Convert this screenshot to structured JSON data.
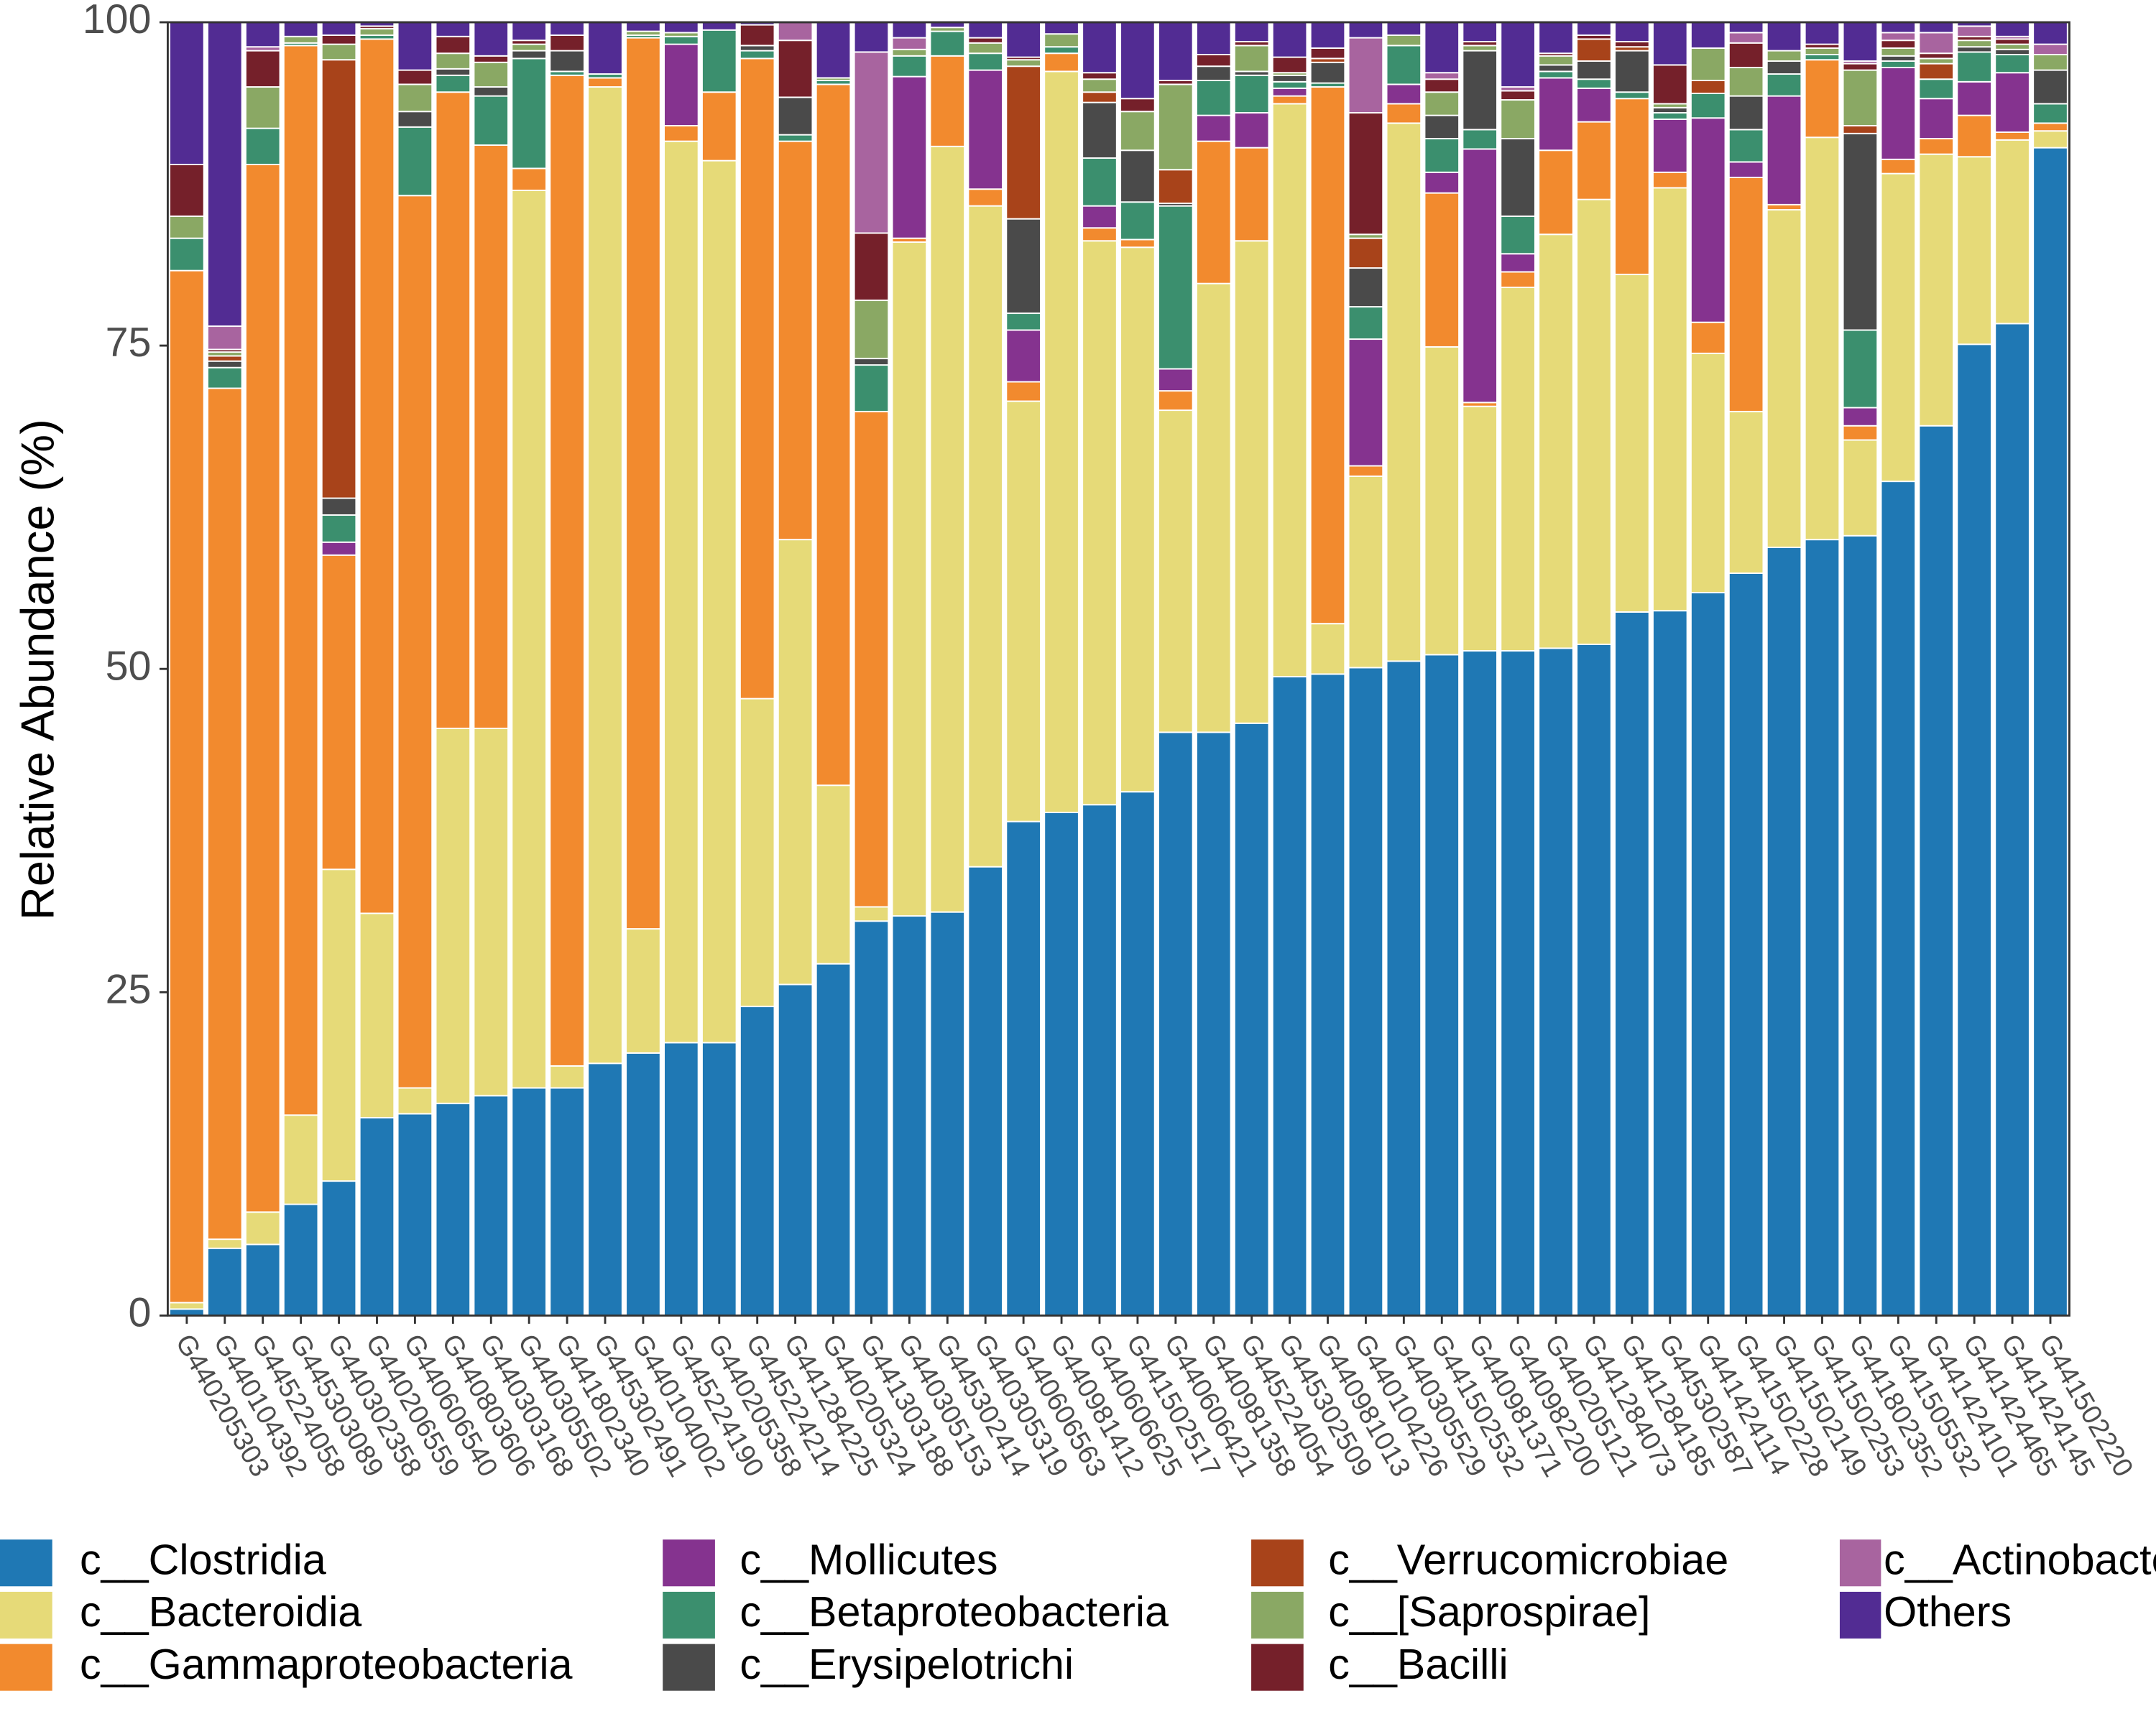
{
  "chart_data": {
    "type": "stacked_bar",
    "y_label": "Relative Abundance (%)",
    "categories": [
      "G440205303",
      "G440104392",
      "G445224058",
      "G445303089",
      "G440302358",
      "G440206559",
      "G440606540",
      "G440803606",
      "G440303168",
      "G440305502",
      "G441802340",
      "G445302491",
      "G440104002",
      "G445224190",
      "G440205358",
      "G445224214",
      "G441284225",
      "G440205324",
      "G441303188",
      "G440305153",
      "G445302414",
      "G440305319",
      "G440606563",
      "G440981412",
      "G440606625",
      "G441502517",
      "G440606421",
      "G440981358",
      "G445224054",
      "G445302509",
      "G440981013",
      "G440104226",
      "G440305529",
      "G441502532",
      "G440981371",
      "G440982200",
      "G440205121",
      "G441284073",
      "G441284185",
      "G445302587",
      "G441424114",
      "G441502228",
      "G441502149",
      "G441502253",
      "G441802352",
      "G441505532",
      "G441424101",
      "G441424465",
      "G441424145",
      "G441502220"
    ],
    "series": [
      {
        "name": "c__Clostridia",
        "color": "#1f78b4",
        "values": [
          0.5,
          5.2,
          5.5,
          8.6,
          10.4,
          15.3,
          15.6,
          16.4,
          17,
          17.6,
          17.6,
          19.5,
          20.3,
          21.1,
          21.1,
          23.9,
          25.6,
          27.2,
          30.5,
          30.9,
          31.2,
          34.7,
          38.2,
          38.9,
          39.5,
          40.5,
          45.1,
          45.1,
          45.8,
          49.4,
          49.6,
          50.1,
          50.6,
          51.1,
          51.4,
          51.4,
          51.6,
          51.9,
          54.4,
          54.5,
          55.9,
          57.4,
          59.4,
          60,
          60.3,
          64.5,
          68.8,
          75.1,
          76.7,
          90.3
        ]
      },
      {
        "name": "c__Bacteroidia",
        "color": "#e6da78",
        "values": [
          0.5,
          0.7,
          2.5,
          6.9,
          24.1,
          15.8,
          2,
          29,
          28.4,
          69.4,
          1.7,
          75.5,
          9.6,
          69.7,
          68.2,
          23.8,
          34.4,
          13.8,
          1.1,
          52.1,
          59.2,
          51.1,
          32.5,
          57.3,
          43.6,
          42.1,
          24.9,
          34.7,
          37.3,
          44.3,
          3.9,
          14.8,
          41.6,
          23.8,
          18.9,
          28.1,
          32,
          34.4,
          26.1,
          32.7,
          18.5,
          12.5,
          26.1,
          31.1,
          7.4,
          23.8,
          21,
          14.5,
          14.2,
          1.3
        ]
      },
      {
        "name": "c__Gammaproteobacteria",
        "color": "#f28a2e",
        "values": [
          79.8,
          65.8,
          81,
          82.7,
          24.3,
          67.6,
          69,
          49.2,
          45.1,
          1.7,
          76.6,
          0.7,
          68.9,
          1.2,
          5.3,
          49.5,
          30.8,
          54.2,
          38.3,
          0.3,
          7,
          1.3,
          1.5,
          1.4,
          1,
          0.6,
          1.5,
          11,
          7.2,
          0.6,
          41.5,
          0.8,
          1.5,
          11.9,
          0.3,
          1.2,
          6.5,
          6,
          13.6,
          1.2,
          2.4,
          18.1,
          0.4,
          6,
          1.1,
          1.1,
          1.2,
          3.2,
          0.6,
          0.6
        ]
      },
      {
        "name": "c__Mollicutes",
        "color": "#85338f",
        "values": [
          0,
          0,
          0,
          0,
          1,
          0,
          0,
          0,
          0,
          0,
          0,
          0,
          0,
          6.3,
          0,
          0,
          0,
          0,
          0,
          12.5,
          0,
          9.2,
          4,
          0,
          1.7,
          0,
          1.7,
          2,
          2.7,
          0.6,
          0,
          9.8,
          1.5,
          1.6,
          19.6,
          1.4,
          5.6,
          2.6,
          0,
          4.1,
          15.8,
          1.2,
          8.4,
          0,
          1.4,
          7.1,
          3.1,
          2.6,
          4.6,
          0
        ]
      },
      {
        "name": "c__Betaproteobacteria",
        "color": "#3b8f6e",
        "values": [
          2.5,
          1.6,
          2.8,
          0.2,
          2.1,
          0.3,
          5.3,
          1.3,
          3.8,
          8.5,
          0.3,
          0.3,
          0.2,
          0.6,
          4.8,
          0.6,
          0.5,
          0.3,
          3.6,
          1.6,
          1.9,
          1.3,
          1.3,
          0.5,
          3.7,
          2.9,
          12.6,
          2.7,
          2.9,
          0.5,
          0.3,
          2.5,
          3,
          2.6,
          1.5,
          2.9,
          0.5,
          0.7,
          0.5,
          0.5,
          1.9,
          2.5,
          1.7,
          0.4,
          6,
          0.5,
          1.5,
          2.3,
          1.4,
          1.5
        ]
      },
      {
        "name": "c__Erysipelotrichi",
        "color": "#4a4a4a",
        "values": [
          0,
          0.5,
          0,
          0,
          1.3,
          0,
          1.2,
          0.5,
          0.7,
          0.6,
          1.6,
          0,
          0,
          0,
          0,
          0.4,
          2.9,
          0,
          0.5,
          0,
          0,
          0,
          7.3,
          0,
          4.3,
          4,
          0.2,
          1.1,
          0.3,
          0.5,
          1.6,
          3,
          0,
          1.8,
          6.1,
          6,
          0.5,
          1.4,
          3.2,
          0.4,
          0,
          2.6,
          1,
          0,
          15.2,
          0.4,
          0,
          0.4,
          0.4,
          2.6
        ]
      },
      {
        "name": "c__Verrucomicrobiae",
        "color": "#a8431a",
        "values": [
          0,
          0.4,
          0,
          0,
          33.9,
          0,
          0,
          0,
          0,
          0,
          0,
          0,
          0,
          0,
          0,
          0,
          0,
          0,
          0,
          0,
          0,
          0,
          11.8,
          0,
          0.8,
          0,
          2.6,
          0,
          0,
          0,
          0.3,
          2.3,
          0,
          0,
          0,
          0,
          0,
          1.7,
          0.3,
          0,
          1,
          0,
          0,
          0,
          0.6,
          0,
          1.2,
          0,
          0,
          0
        ]
      },
      {
        "name": "c__[Saprospirae]",
        "color": "#8aa864",
        "values": [
          1.7,
          0.3,
          3.2,
          0.5,
          1.2,
          0.5,
          2.1,
          1.2,
          1.9,
          0.5,
          0,
          0,
          0.3,
          0.3,
          0,
          0,
          0,
          0.2,
          4.5,
          0.5,
          0.3,
          0.8,
          0.5,
          1,
          1,
          3,
          6.6,
          0,
          2,
          0.2,
          0,
          0.3,
          0.8,
          1.8,
          0.4,
          3,
          0.7,
          0,
          0,
          0.3,
          2.5,
          2.2,
          0.8,
          0.5,
          4.3,
          0.6,
          0.4,
          0.5,
          0.4,
          1.2
        ]
      },
      {
        "name": "c__Bacilli",
        "color": "#75202a",
        "values": [
          4,
          0.2,
          2.8,
          0,
          0.7,
          0.2,
          1.1,
          1.3,
          0.5,
          0.3,
          1.2,
          0,
          0,
          0,
          0,
          1.6,
          4.4,
          0,
          5.2,
          0,
          0,
          0.4,
          0.2,
          0,
          0.5,
          1,
          0.3,
          0.9,
          0.3,
          1.2,
          0.8,
          9.4,
          0,
          1,
          0.3,
          0.7,
          0.2,
          0.3,
          0.4,
          3,
          0,
          1.9,
          0,
          0.3,
          0.5,
          0.6,
          0.4,
          0.3,
          0.4,
          0
        ]
      },
      {
        "name": "c__Actinobacteria",
        "color": "#a8649f",
        "values": [
          0,
          1.8,
          0.3,
          0,
          0,
          0,
          0,
          0,
          0,
          0,
          0,
          0,
          0,
          0,
          0,
          0,
          1.4,
          0,
          14,
          0.9,
          0,
          0,
          0,
          0,
          0,
          0,
          0,
          0,
          0,
          0,
          0,
          5.8,
          0,
          0.5,
          0,
          0.3,
          0,
          0,
          0,
          0,
          0,
          0.8,
          0,
          0,
          0.2,
          0.6,
          1.6,
          0.8,
          0.2,
          0.8
        ]
      },
      {
        "name": "Others",
        "color": "#522c93",
        "values": [
          11,
          23.5,
          1.9,
          1.1,
          1,
          0.3,
          3.7,
          1.1,
          2.6,
          1.4,
          1,
          4,
          0.7,
          0.8,
          0.6,
          0.2,
          0,
          4.3,
          2.3,
          1.2,
          0.4,
          1.2,
          2.7,
          0.9,
          3.9,
          5.9,
          4.5,
          2.5,
          1.5,
          2.7,
          2,
          1.2,
          1,
          3.9,
          1.5,
          5,
          2.4,
          1,
          1.5,
          3.3,
          2,
          0.8,
          2.2,
          1.7,
          3,
          0.8,
          0.8,
          0.3,
          1.1,
          1.7
        ]
      }
    ],
    "ylim": [
      0,
      100
    ],
    "yticks": [
      0,
      25,
      50,
      75,
      100
    ],
    "grid": false,
    "legend": "bottom"
  }
}
